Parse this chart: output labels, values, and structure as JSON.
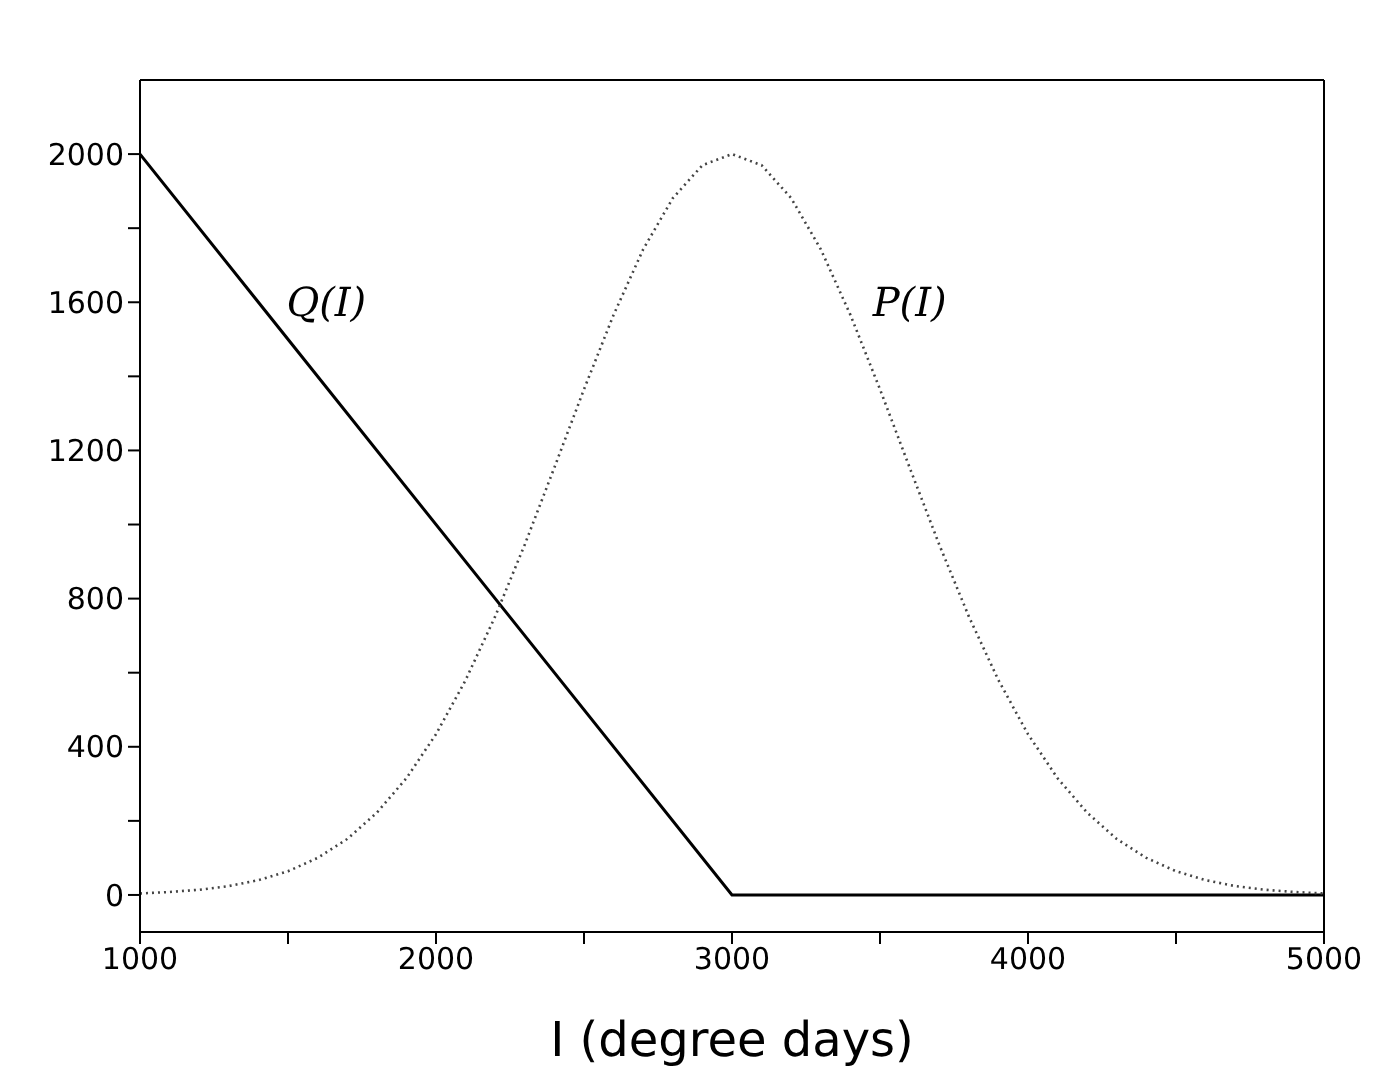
{
  "chart_data": {
    "type": "line",
    "xlabel": "I (degree days)",
    "xlim": [
      1000,
      5000
    ],
    "xticks": [
      1000,
      {
        "value": 1500,
        "label": null
      },
      2000,
      {
        "value": 2500,
        "label": null
      },
      3000,
      {
        "value": 3500,
        "label": null
      },
      4000,
      {
        "value": 4500,
        "label": null
      },
      5000
    ],
    "ylim": [
      -100,
      2200
    ],
    "yticks": [
      0,
      {
        "value": 200,
        "label": null
      },
      400,
      {
        "value": 600,
        "label": null
      },
      800,
      {
        "value": 1000,
        "label": null
      },
      1200,
      {
        "value": 1400,
        "label": null
      },
      1600,
      {
        "value": 1800,
        "label": null
      },
      2000
    ],
    "grid": false,
    "legend": false,
    "marker": "none",
    "series": [
      {
        "name": "Q(I)",
        "color": "#000000",
        "line_style": "solid",
        "x": [
          1000,
          3000,
          5000
        ],
        "values": [
          2000,
          0,
          0
        ]
      },
      {
        "name": "P(I)",
        "color": "#444444",
        "line_style": "dotted",
        "x": [
          1000,
          1100,
          1200,
          1300,
          1400,
          1500,
          1600,
          1700,
          1800,
          1900,
          2000,
          2100,
          2200,
          2300,
          2400,
          2500,
          2600,
          2700,
          2800,
          2900,
          3000,
          3100,
          3200,
          3300,
          3400,
          3500,
          3600,
          3700,
          3800,
          3900,
          4000,
          4100,
          4200,
          4300,
          4400,
          4500,
          4600,
          4700,
          4800,
          4900,
          5000
        ],
        "values": [
          4,
          8,
          14,
          24,
          40,
          64,
          100,
          151,
          222,
          315,
          434,
          580,
          752,
          946,
          1154,
          1365,
          1566,
          1743,
          1881,
          1970,
          2000,
          1970,
          1881,
          1743,
          1566,
          1365,
          1154,
          946,
          752,
          580,
          434,
          315,
          222,
          151,
          100,
          64,
          40,
          24,
          14,
          8,
          4
        ]
      }
    ]
  }
}
